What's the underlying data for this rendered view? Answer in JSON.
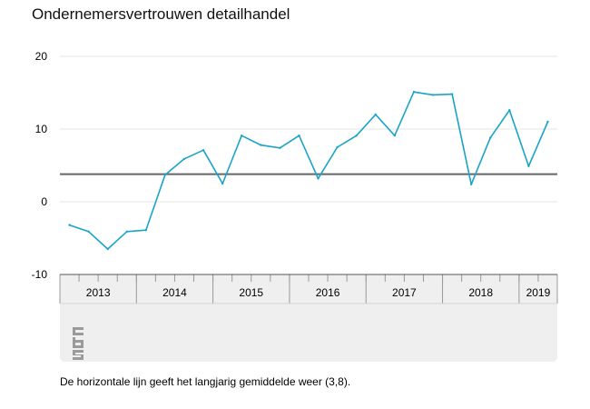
{
  "title": "Ondernemersvertrouwen detailhandel",
  "footnote": "De horizontale lijn geeft het langjarig gemiddelde weer (3,8).",
  "logo_text": "cbs",
  "chart_data": {
    "type": "line",
    "title": "Ondernemersvertrouwen detailhandel",
    "xlabel": "",
    "ylabel": "",
    "ylim": [
      -10,
      20
    ],
    "yticks": [
      -10,
      0,
      10,
      20
    ],
    "grid": true,
    "legend": "none",
    "year_labels": [
      "2013",
      "2014",
      "2015",
      "2016",
      "2017",
      "2018",
      "2019"
    ],
    "year_quarter_counts": [
      4,
      4,
      4,
      4,
      4,
      4,
      2
    ],
    "x": [
      "2013 K1",
      "2013 K2",
      "2013 K3",
      "2013 K4",
      "2014 K1",
      "2014 K2",
      "2014 K3",
      "2014 K4",
      "2015 K1",
      "2015 K2",
      "2015 K3",
      "2015 K4",
      "2016 K1",
      "2016 K2",
      "2016 K3",
      "2016 K4",
      "2017 K1",
      "2017 K2",
      "2017 K3",
      "2017 K4",
      "2018 K1",
      "2018 K2",
      "2018 K3",
      "2018 K4",
      "2019 K1",
      "2019 K2"
    ],
    "series": [
      {
        "values": [
          -3.2,
          -4.1,
          -6.5,
          -4.1,
          -3.9,
          3.7,
          5.9,
          7.1,
          2.5,
          9.1,
          7.8,
          7.4,
          9.1,
          3.2,
          7.5,
          9.1,
          12.0,
          9.1,
          15.1,
          14.7,
          14.8,
          2.4,
          8.8,
          12.6,
          4.9,
          11.0
        ],
        "color": "#1aa3c9"
      }
    ],
    "reference_line": {
      "value": 3.8,
      "color": "#666666"
    }
  },
  "colors": {
    "line": "#1aa3c9",
    "reference": "#666666",
    "grid": "#e6e6e6",
    "axis_panel": "#efefef"
  }
}
